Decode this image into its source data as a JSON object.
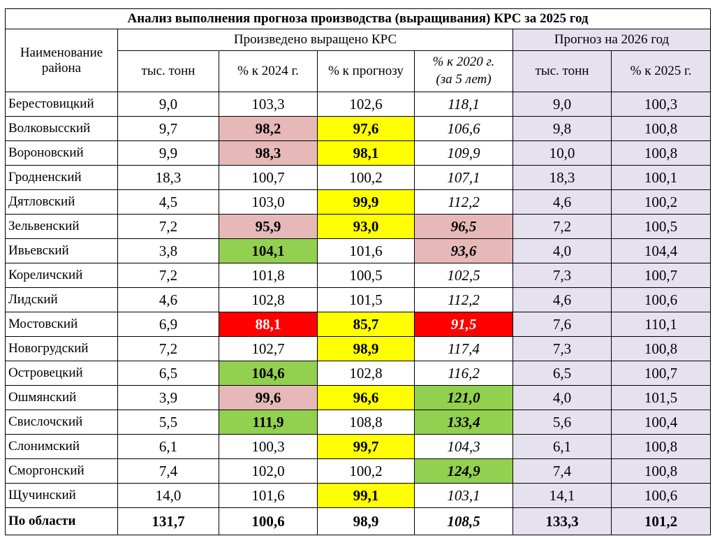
{
  "title": "Анализ выполнения прогноза производства (выращивания) КРС за 2025 год",
  "headers": {
    "district": "Наименование района",
    "produced_group": "Произведено выращено КРС",
    "forecast_group": "Прогноз на 2026 год",
    "cols": [
      "тыс. тонн",
      "% к 2024 г.",
      "% к прогнозу",
      "% к 2020 г. (за 5 лет)",
      "тыс. тонн",
      "% к 2025 г."
    ]
  },
  "colors": {
    "pink": "#e6b9b8",
    "yellow": "#ffff00",
    "green": "#92d050",
    "red": "#ff0000",
    "forecast": "#e6e1ef"
  },
  "rows": [
    {
      "name": "Берестовицкий",
      "c": [
        "9,0",
        "103,3",
        "102,6",
        "118,1",
        "9,0",
        "100,3"
      ],
      "hl": [
        null,
        null,
        null,
        null
      ]
    },
    {
      "name": "Волковысский",
      "c": [
        "9,7",
        "98,2",
        "97,6",
        "106,6",
        "9,8",
        "100,8"
      ],
      "hl": [
        null,
        "pink",
        "yellow",
        null
      ]
    },
    {
      "name": "Вороновский",
      "c": [
        "9,9",
        "98,3",
        "98,1",
        "109,9",
        "10,0",
        "100,8"
      ],
      "hl": [
        null,
        "pink",
        "yellow",
        null
      ]
    },
    {
      "name": "Гродненский",
      "c": [
        "18,3",
        "100,7",
        "100,2",
        "107,1",
        "18,3",
        "100,1"
      ],
      "hl": [
        null,
        null,
        null,
        null
      ]
    },
    {
      "name": "Дятловский",
      "c": [
        "4,5",
        "103,0",
        "99,9",
        "112,2",
        "4,6",
        "100,2"
      ],
      "hl": [
        null,
        null,
        "yellow",
        null
      ]
    },
    {
      "name": "Зельвенский",
      "c": [
        "7,2",
        "95,9",
        "93,0",
        "96,5",
        "7,2",
        "100,5"
      ],
      "hl": [
        null,
        "pink",
        "yellow",
        "pink"
      ]
    },
    {
      "name": "Ивьевский",
      "c": [
        "3,8",
        "104,1",
        "101,6",
        "93,6",
        "4,0",
        "104,4"
      ],
      "hl": [
        null,
        "green",
        null,
        "pink"
      ]
    },
    {
      "name": "Кореличский",
      "c": [
        "7,2",
        "101,8",
        "100,5",
        "102,5",
        "7,3",
        "100,7"
      ],
      "hl": [
        null,
        null,
        null,
        null
      ]
    },
    {
      "name": "Лидский",
      "c": [
        "4,6",
        "102,8",
        "101,5",
        "112,2",
        "4,6",
        "100,6"
      ],
      "hl": [
        null,
        null,
        null,
        null
      ]
    },
    {
      "name": "Мостовский",
      "c": [
        "6,9",
        "88,1",
        "85,7",
        "91,5",
        "7,6",
        "110,1"
      ],
      "hl": [
        null,
        "red",
        "yellow",
        "red"
      ]
    },
    {
      "name": "Новогрудский",
      "c": [
        "7,2",
        "102,7",
        "98,9",
        "117,4",
        "7,3",
        "100,8"
      ],
      "hl": [
        null,
        null,
        "yellow",
        null
      ]
    },
    {
      "name": "Островецкий",
      "c": [
        "6,5",
        "104,6",
        "102,8",
        "116,2",
        "6,5",
        "100,7"
      ],
      "hl": [
        null,
        "green",
        null,
        null
      ]
    },
    {
      "name": "Ошмянский",
      "c": [
        "3,9",
        "99,6",
        "96,6",
        "121,0",
        "4,0",
        "101,5"
      ],
      "hl": [
        null,
        "pink",
        "yellow",
        "green"
      ]
    },
    {
      "name": "Свислочский",
      "c": [
        "5,5",
        "111,9",
        "108,8",
        "133,4",
        "5,6",
        "100,4"
      ],
      "hl": [
        null,
        "green",
        null,
        "green"
      ]
    },
    {
      "name": "Слонимский",
      "c": [
        "6,1",
        "100,3",
        "99,7",
        "104,3",
        "6,1",
        "100,8"
      ],
      "hl": [
        null,
        null,
        "yellow",
        null
      ]
    },
    {
      "name": "Сморгонский",
      "c": [
        "7,4",
        "102,0",
        "100,2",
        "124,9",
        "7,4",
        "100,8"
      ],
      "hl": [
        null,
        null,
        null,
        "green"
      ]
    },
    {
      "name": "Щучинский",
      "c": [
        "14,0",
        "101,6",
        "99,1",
        "103,1",
        "14,1",
        "100,6"
      ],
      "hl": [
        null,
        null,
        "yellow",
        null
      ]
    }
  ],
  "total": {
    "name": "По области",
    "c": [
      "131,7",
      "100,6",
      "98,9",
      "108,5",
      "133,3",
      "101,2"
    ]
  }
}
